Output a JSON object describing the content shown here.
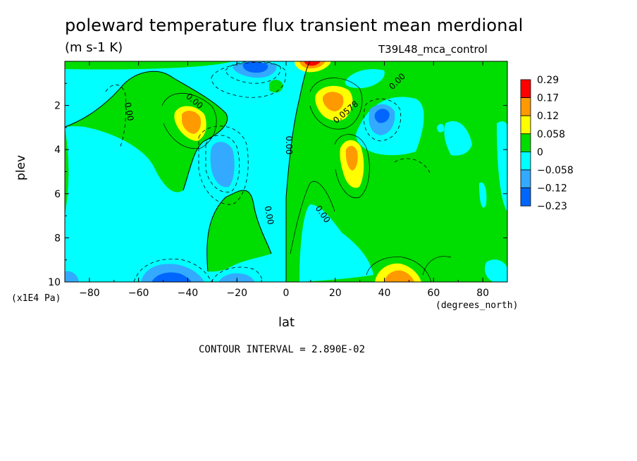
{
  "header": {
    "title": "poleward temperature flux transient mean merdional",
    "units": "(m s-1 K)",
    "dataset": "T39L48_mca_control",
    "contour_interval": "CONTOUR INTERVAL = 2.890E-02"
  },
  "colors": {
    "red": "#ff0000",
    "orange": "#ff9900",
    "yellow": "#ffff00",
    "green": "#00dd00",
    "cyan": "#00ffff",
    "lightblue": "#33aaff",
    "blue": "#0066ff"
  },
  "chart_data": {
    "type": "heatmap",
    "title": "poleward temperature flux transient mean merdional",
    "xlabel": "lat",
    "ylabel": "plev",
    "x_units": "(degrees_north)",
    "y_units": "(x1E4 Pa)",
    "xlim": [
      -90,
      90
    ],
    "ylim": [
      10,
      0
    ],
    "x_ticks": [
      -80,
      -60,
      -40,
      -20,
      0,
      20,
      40,
      60,
      80
    ],
    "y_ticks": [
      2,
      4,
      6,
      8,
      10
    ],
    "x_tick_labels": [
      "-80",
      "-60",
      "-40",
      "-20",
      "0",
      "20",
      "40",
      "60",
      "80"
    ],
    "y_tick_labels": [
      "2",
      "4",
      "6",
      "8",
      "10"
    ],
    "legend": {
      "placement": "right",
      "labels": [
        "0.29",
        "0.17",
        "0.12",
        "0.058",
        "0",
        "−0.058",
        "−0.12",
        "−0.23"
      ],
      "colors": [
        "#ff0000",
        "#ff9900",
        "#ffff00",
        "#00dd00",
        "#00ffff",
        "#33aaff",
        "#0066ff"
      ]
    },
    "contour_labels": [
      {
        "text": "0.00",
        "lat": -65,
        "plev": 2.3,
        "rotate": 80
      },
      {
        "text": "0.00",
        "lat": -38,
        "plev": 1.9,
        "rotate": 40
      },
      {
        "text": "0.00",
        "lat": 0,
        "plev": 3.8,
        "rotate": 90
      },
      {
        "text": "0.00",
        "lat": -8,
        "plev": 7.0,
        "rotate": 80
      },
      {
        "text": "0.00",
        "lat": 14,
        "plev": 7.0,
        "rotate": 55
      },
      {
        "text": "0.00",
        "lat": 46,
        "plev": 1.0,
        "rotate": -45
      },
      {
        "text": "0.0578",
        "lat": 25,
        "plev": 2.4,
        "rotate": -40
      }
    ],
    "field_regions": [
      {
        "level": "negative_weak",
        "lat": [
          -88,
          -60
        ],
        "plev": [
          0.5,
          9.5
        ]
      },
      {
        "level": "positive_weak",
        "lat": [
          -52,
          -30
        ],
        "plev": [
          1.0,
          5.5
        ]
      },
      {
        "level": "positive_medium",
        "lat": [
          -40,
          -34
        ],
        "plev": [
          2.0,
          3.2
        ]
      },
      {
        "level": "negative_medium",
        "lat": [
          -30,
          -22
        ],
        "plev": [
          3.8,
          5.8
        ]
      },
      {
        "level": "negative_medium",
        "lat": [
          -20,
          -5
        ],
        "plev": [
          0.0,
          1.5
        ]
      },
      {
        "level": "positive_weak",
        "lat": [
          2,
          90
        ],
        "plev": [
          0.0,
          10.0
        ]
      },
      {
        "level": "positive_medium",
        "lat": [
          12,
          26
        ],
        "plev": [
          1.2,
          2.8
        ]
      },
      {
        "level": "positive_medium",
        "lat": [
          24,
          30
        ],
        "plev": [
          3.6,
          5.4
        ]
      },
      {
        "level": "negative_medium",
        "lat": [
          34,
          42
        ],
        "plev": [
          2.0,
          3.4
        ]
      },
      {
        "level": "positive_strong",
        "lat": [
          5,
          15
        ],
        "plev": [
          0.0,
          0.4
        ]
      },
      {
        "level": "negative_weak",
        "lat": [
          -42,
          -20
        ],
        "plev": [
          9.0,
          10.0
        ]
      },
      {
        "level": "negative_strong",
        "lat": [
          -52,
          -40
        ],
        "plev": [
          9.3,
          10.0
        ]
      },
      {
        "level": "positive_medium",
        "lat": [
          38,
          50
        ],
        "plev": [
          9.2,
          10.0
        ]
      }
    ]
  }
}
